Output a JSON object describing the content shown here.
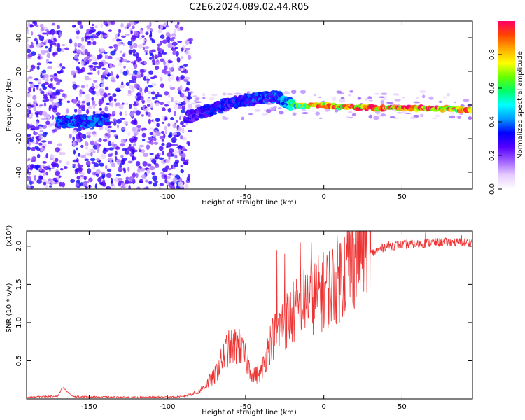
{
  "chart_data": [
    {
      "type": "heatmap",
      "title": "C2E6.2024.089.02.44.R05",
      "xlabel": "Height of straight line (km)",
      "ylabel": "Frequency (Hz)",
      "xlim": [
        -190,
        95
      ],
      "ylim": [
        -50,
        50
      ],
      "xticks": [
        -150,
        -100,
        -50,
        0,
        50
      ],
      "yticks": [
        -40,
        -20,
        0,
        20,
        40
      ],
      "colorbar": {
        "label": "Normalized spectral amplitude",
        "range": [
          0.0,
          1.0
        ],
        "ticks": [
          0.0,
          0.2,
          0.4,
          0.6,
          0.8
        ],
        "colormap": [
          "#ffffff",
          "#e6ccff",
          "#9f5fff",
          "#5500ff",
          "#0000ff",
          "#0099ff",
          "#00ffff",
          "#00ff66",
          "#66ff00",
          "#ffff00",
          "#ffaa00",
          "#ff4400",
          "#ff0066"
        ]
      },
      "ridge": [
        {
          "x": -170,
          "f": -10,
          "a": 0.4
        },
        {
          "x": -155,
          "f": -10,
          "a": 0.42
        },
        {
          "x": -140,
          "f": -9,
          "a": 0.4
        },
        {
          "x": -85,
          "f": -7,
          "a": 0.3
        },
        {
          "x": -70,
          "f": -2,
          "a": 0.35
        },
        {
          "x": -55,
          "f": 2,
          "a": 0.35
        },
        {
          "x": -40,
          "f": 4,
          "a": 0.38
        },
        {
          "x": -30,
          "f": 5,
          "a": 0.4
        },
        {
          "x": -20,
          "f": 0,
          "a": 0.6
        },
        {
          "x": -10,
          "f": 0,
          "a": 0.85
        },
        {
          "x": 0,
          "f": 0,
          "a": 0.95
        },
        {
          "x": 10,
          "f": -1,
          "a": 0.95
        },
        {
          "x": 25,
          "f": -1.5,
          "a": 1.0
        },
        {
          "x": 50,
          "f": -2,
          "a": 1.0
        },
        {
          "x": 75,
          "f": -2,
          "a": 0.95
        },
        {
          "x": 95,
          "f": -3,
          "a": 0.9
        }
      ],
      "scatter_noise_region": {
        "x": [
          -190,
          -85
        ],
        "f": [
          -50,
          50
        ]
      }
    },
    {
      "type": "line",
      "xlabel": "Height of straight line (km)",
      "ylabel": "SNR (10 * v/v)",
      "yscale_label": "(x10⁴)",
      "xlim": [
        -190,
        95
      ],
      "ylim": [
        0,
        2.2
      ],
      "xticks": [
        -150,
        -100,
        -50,
        0,
        50
      ],
      "yticks": [
        0.5,
        1.0,
        1.5,
        2.0
      ],
      "series": [
        {
          "color": "#ee3333",
          "envelope": [
            {
              "x": -190,
              "y": 0.02
            },
            {
              "x": -170,
              "y": 0.04
            },
            {
              "x": -167,
              "y": 0.15
            },
            {
              "x": -160,
              "y": 0.03
            },
            {
              "x": -120,
              "y": 0.02
            },
            {
              "x": -90,
              "y": 0.03
            },
            {
              "x": -80,
              "y": 0.08
            },
            {
              "x": -70,
              "y": 0.25
            },
            {
              "x": -62,
              "y": 0.55
            },
            {
              "x": -55,
              "y": 0.6
            },
            {
              "x": -50,
              "y": 0.45
            },
            {
              "x": -45,
              "y": 0.25
            },
            {
              "x": -40,
              "y": 0.3
            },
            {
              "x": -35,
              "y": 0.6
            },
            {
              "x": -30,
              "y": 0.75
            },
            {
              "x": -20,
              "y": 0.95
            },
            {
              "x": -10,
              "y": 1.1
            },
            {
              "x": 0,
              "y": 1.2
            },
            {
              "x": 10,
              "y": 1.35
            },
            {
              "x": 20,
              "y": 1.6
            },
            {
              "x": 30,
              "y": 1.9
            },
            {
              "x": 40,
              "y": 2.0
            },
            {
              "x": 50,
              "y": 2.02
            },
            {
              "x": 60,
              "y": 2.03
            },
            {
              "x": 70,
              "y": 2.05
            },
            {
              "x": 80,
              "y": 2.05
            },
            {
              "x": 95,
              "y": 2.05
            }
          ],
          "spikes": [
            {
              "x": -62,
              "y": 0.82
            },
            {
              "x": -53,
              "y": 0.85
            },
            {
              "x": -30,
              "y": 1.95
            },
            {
              "x": -25,
              "y": 1.9
            },
            {
              "x": -15,
              "y": 2.05
            },
            {
              "x": -8,
              "y": 2.05
            },
            {
              "x": 65,
              "y": 2.18
            },
            {
              "x": 88,
              "y": 2.15
            }
          ]
        }
      ]
    }
  ]
}
